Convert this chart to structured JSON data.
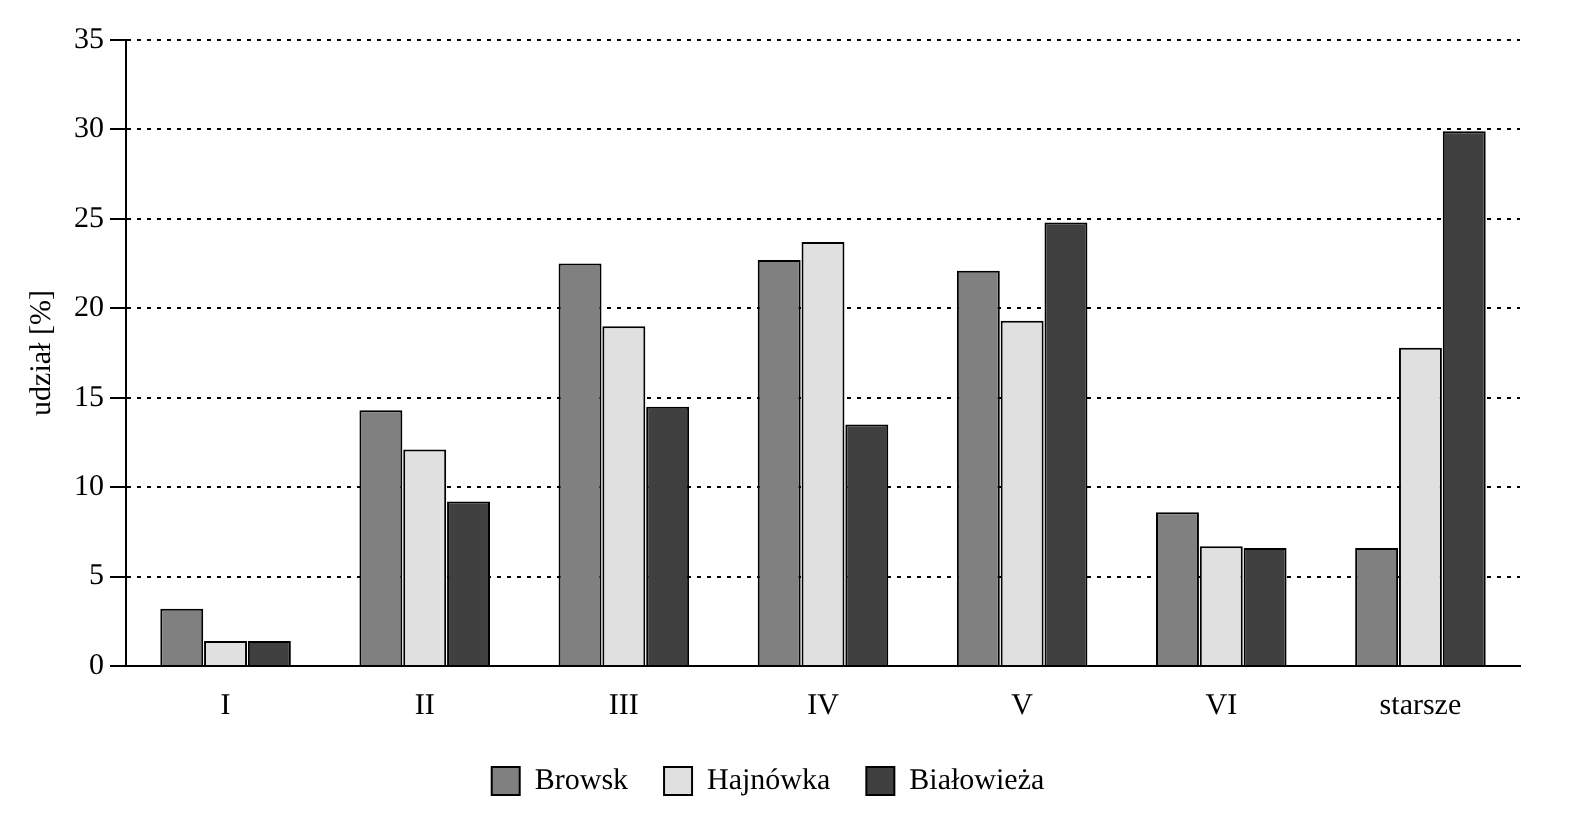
{
  "chart_data": {
    "type": "bar",
    "ylabel": "udział [%]",
    "categories": [
      "I",
      "II",
      "III",
      "IV",
      "V",
      "VI",
      "starsze"
    ],
    "series": [
      {
        "name": "Browsk",
        "color": "#808080",
        "values": [
          3.2,
          14.3,
          22.5,
          22.7,
          22.1,
          8.6,
          6.6
        ]
      },
      {
        "name": "Hajnówka",
        "color": "#e0e0e0",
        "values": [
          1.4,
          12.1,
          19.0,
          23.7,
          19.3,
          6.7,
          17.8
        ]
      },
      {
        "name": "Białowieża",
        "color": "#404040",
        "values": [
          1.4,
          9.2,
          14.5,
          13.5,
          24.8,
          6.6,
          29.9
        ]
      }
    ],
    "ylim": [
      0,
      35
    ],
    "yticks": [
      0,
      5,
      10,
      15,
      20,
      25,
      30,
      35
    ],
    "grid": "y",
    "legend": "bottom"
  }
}
